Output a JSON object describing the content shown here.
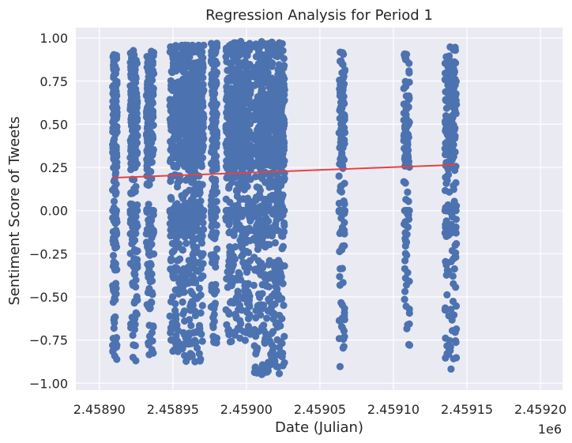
{
  "chart_data": {
    "type": "scatter",
    "title": "Regression Analysis for Period 1",
    "xlabel": "Date (Julian)",
    "ylabel": "Sentiment Score of Tweets",
    "x_offset_label": "1e6",
    "x_ticks": [
      "2.45890",
      "2.45895",
      "2.45900",
      "2.45905",
      "2.45910",
      "2.45915",
      "2.45920"
    ],
    "y_ticks": [
      "1.00",
      "0.75",
      "0.50",
      "0.25",
      "0.00",
      "−0.25",
      "−0.50",
      "−0.75",
      "−1.00"
    ],
    "x_tick_values": [
      2458900,
      2458950,
      2459000,
      2459050,
      2459100,
      2459150,
      2459200
    ],
    "y_tick_values": [
      1.0,
      0.75,
      0.5,
      0.25,
      0.0,
      -0.25,
      -0.5,
      -0.75,
      -1.0
    ],
    "xlim": [
      2458884,
      2459215
    ],
    "ylim": [
      -1.04,
      1.06
    ],
    "grid": true,
    "background": "#eaeaf2",
    "point_color": "#4c72b0",
    "line_color": "#e8413f",
    "clusters": [
      {
        "x_start": 2458909,
        "x_end": 2458912,
        "n": 220,
        "y_min": -0.89,
        "y_max": 0.91
      },
      {
        "x_start": 2458921,
        "x_end": 2458926,
        "n": 240,
        "y_min": -0.88,
        "y_max": 0.93
      },
      {
        "x_start": 2458932,
        "x_end": 2458937,
        "n": 260,
        "y_min": -0.84,
        "y_max": 0.93
      },
      {
        "x_start": 2458948,
        "x_end": 2458955,
        "n": 280,
        "y_min": -0.82,
        "y_max": 0.98
      },
      {
        "x_start": 2458956,
        "x_end": 2458971,
        "n": 700,
        "y_min": -0.88,
        "y_max": 0.96
      },
      {
        "x_start": 2458976,
        "x_end": 2458980,
        "n": 240,
        "y_min": -0.77,
        "y_max": 0.97
      },
      {
        "x_start": 2458986,
        "x_end": 2459003,
        "n": 700,
        "y_min": -0.77,
        "y_max": 0.98
      },
      {
        "x_start": 2459005,
        "x_end": 2459026,
        "n": 900,
        "y_min": -0.95,
        "y_max": 0.98
      },
      {
        "x_start": 2459063,
        "x_end": 2459067,
        "n": 150,
        "y_min": -0.91,
        "y_max": 0.94
      },
      {
        "x_start": 2459107,
        "x_end": 2459111,
        "n": 120,
        "y_min": -0.78,
        "y_max": 0.92
      },
      {
        "x_start": 2459135,
        "x_end": 2459143,
        "n": 260,
        "y_min": -0.94,
        "y_max": 0.96
      }
    ],
    "regression": {
      "x": [
        2458909,
        2459142
      ],
      "y": [
        0.19,
        0.265
      ]
    }
  }
}
